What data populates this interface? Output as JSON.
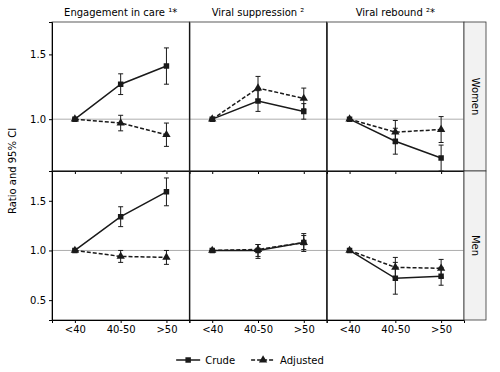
{
  "chart_data": [
    {
      "type": "line",
      "title": "Engagement in care ¹*",
      "ylabel": "Ratio and 95% CI",
      "legend": "bottom",
      "tick_labels": "y",
      "categories": [
        "<40",
        "40-50",
        ">50"
      ],
      "reference_line": 1.0,
      "ylim": [
        0.6,
        1.75
      ],
      "yticks": [
        {
          "value": 1.0,
          "label": "1.0"
        },
        {
          "value": 1.5,
          "label": "1.5"
        }
      ],
      "series": [
        {
          "name": "Crude",
          "color": "#1a1a1a",
          "marker": "square",
          "line_style": "solid",
          "values": [
            1.0,
            1.27,
            1.41
          ],
          "error_lo": [
            0.0,
            0.08,
            0.14
          ],
          "error_hi": [
            0.0,
            0.08,
            0.14
          ]
        },
        {
          "name": "Adjusted",
          "color": "#1a1a1a",
          "marker": "triangle",
          "line_style": "dashed",
          "values": [
            1.0,
            0.97,
            0.88
          ],
          "error_lo": [
            0.0,
            0.06,
            0.09
          ],
          "error_hi": [
            0.0,
            0.06,
            0.09
          ]
        }
      ]
    },
    {
      "type": "line",
      "title": "Viral suppression ²",
      "tick_labels": false,
      "categories": [
        "<40",
        "40-50",
        ">50"
      ],
      "reference_line": 1.0,
      "ylim": [
        0.6,
        1.75
      ],
      "yticks": [
        {
          "value": 1.0,
          "label": "1.0"
        },
        {
          "value": 1.5,
          "label": "1.5"
        }
      ],
      "series": [
        {
          "name": "Crude",
          "color": "#1a1a1a",
          "marker": "square",
          "line_style": "solid",
          "values": [
            1.0,
            1.14,
            1.06
          ],
          "error_lo": [
            0.0,
            0.08,
            0.06
          ],
          "error_hi": [
            0.0,
            0.08,
            0.06
          ]
        },
        {
          "name": "Adjusted",
          "color": "#1a1a1a",
          "marker": "triangle",
          "line_style": "dashed",
          "values": [
            1.0,
            1.24,
            1.16
          ],
          "error_lo": [
            0.0,
            0.09,
            0.08
          ],
          "error_hi": [
            0.0,
            0.09,
            0.08
          ]
        }
      ]
    },
    {
      "type": "line",
      "title": "Viral rebound ²*",
      "tick_labels": false,
      "annotations": [
        {
          "text": "Women"
        }
      ],
      "categories": [
        "<40",
        "40-50",
        ">50"
      ],
      "reference_line": 1.0,
      "ylim": [
        0.6,
        1.75
      ],
      "yticks": [
        {
          "value": 1.0,
          "label": "1.0"
        },
        {
          "value": 1.5,
          "label": "1.5"
        }
      ],
      "series": [
        {
          "name": "Crude",
          "color": "#1a1a1a",
          "marker": "square",
          "line_style": "solid",
          "values": [
            1.0,
            0.83,
            0.7
          ],
          "error_lo": [
            0.0,
            0.1,
            0.1
          ],
          "error_hi": [
            0.0,
            0.1,
            0.1
          ]
        },
        {
          "name": "Adjusted",
          "color": "#1a1a1a",
          "marker": "triangle",
          "line_style": "dashed",
          "values": [
            1.0,
            0.9,
            0.92
          ],
          "error_lo": [
            0.0,
            0.09,
            0.1
          ],
          "error_hi": [
            0.0,
            0.09,
            0.1
          ]
        }
      ]
    },
    {
      "type": "line",
      "categories": [
        "<40",
        "40-50",
        ">50"
      ],
      "reference_line": 1.0,
      "ylim": [
        0.3,
        1.8
      ],
      "yticks": [
        {
          "value": 0.5,
          "label": "0.5"
        },
        {
          "value": 1.0,
          "label": "1.0"
        },
        {
          "value": 1.5,
          "label": "1.5"
        }
      ],
      "series": [
        {
          "name": "Crude",
          "color": "#1a1a1a",
          "marker": "square",
          "line_style": "solid",
          "values": [
            1.0,
            1.34,
            1.59
          ],
          "error_lo": [
            0.0,
            0.1,
            0.14
          ],
          "error_hi": [
            0.0,
            0.1,
            0.14
          ]
        },
        {
          "name": "Adjusted",
          "color": "#1a1a1a",
          "marker": "triangle",
          "line_style": "dashed",
          "values": [
            1.0,
            0.94,
            0.93
          ],
          "error_lo": [
            0.0,
            0.06,
            0.07
          ],
          "error_hi": [
            0.0,
            0.06,
            0.07
          ]
        }
      ]
    },
    {
      "type": "line",
      "tick_labels": "x",
      "categories": [
        "<40",
        "40-50",
        ">50"
      ],
      "reference_line": 1.0,
      "ylim": [
        0.3,
        1.8
      ],
      "yticks": [
        {
          "value": 0.5,
          "label": "0.5"
        },
        {
          "value": 1.0,
          "label": "1.0"
        },
        {
          "value": 1.5,
          "label": "1.5"
        }
      ],
      "series": [
        {
          "name": "Crude",
          "color": "#1a1a1a",
          "marker": "square",
          "line_style": "solid",
          "values": [
            1.0,
            1.0,
            1.08
          ],
          "error_lo": [
            0.0,
            0.06,
            0.09
          ],
          "error_hi": [
            0.0,
            0.06,
            0.09
          ]
        },
        {
          "name": "Adjusted",
          "color": "#1a1a1a",
          "marker": "triangle",
          "line_style": "dashed",
          "values": [
            1.0,
            1.01,
            1.08
          ],
          "error_lo": [
            0.0,
            0.09,
            0.07
          ],
          "error_hi": [
            0.0,
            0.05,
            0.07
          ]
        }
      ]
    },
    {
      "type": "line",
      "tick_labels": "x",
      "annotations": [
        {
          "text": "Men"
        }
      ],
      "categories": [
        "<40",
        "40-50",
        ">50"
      ],
      "reference_line": 1.0,
      "ylim": [
        0.3,
        1.8
      ],
      "yticks": [
        {
          "value": 0.5,
          "label": "0.5"
        },
        {
          "value": 1.0,
          "label": "1.0"
        },
        {
          "value": 1.5,
          "label": "1.5"
        }
      ],
      "series": [
        {
          "name": "Crude",
          "color": "#1a1a1a",
          "marker": "square",
          "line_style": "solid",
          "values": [
            1.0,
            0.72,
            0.74
          ],
          "error_lo": [
            0.0,
            0.16,
            0.09
          ],
          "error_hi": [
            0.0,
            0.16,
            0.09
          ]
        },
        {
          "name": "Adjusted",
          "color": "#1a1a1a",
          "marker": "triangle",
          "line_style": "dashed",
          "values": [
            1.0,
            0.83,
            0.82
          ],
          "error_lo": [
            0.0,
            0.1,
            0.09
          ],
          "error_hi": [
            0.0,
            0.1,
            0.09
          ]
        }
      ]
    }
  ]
}
